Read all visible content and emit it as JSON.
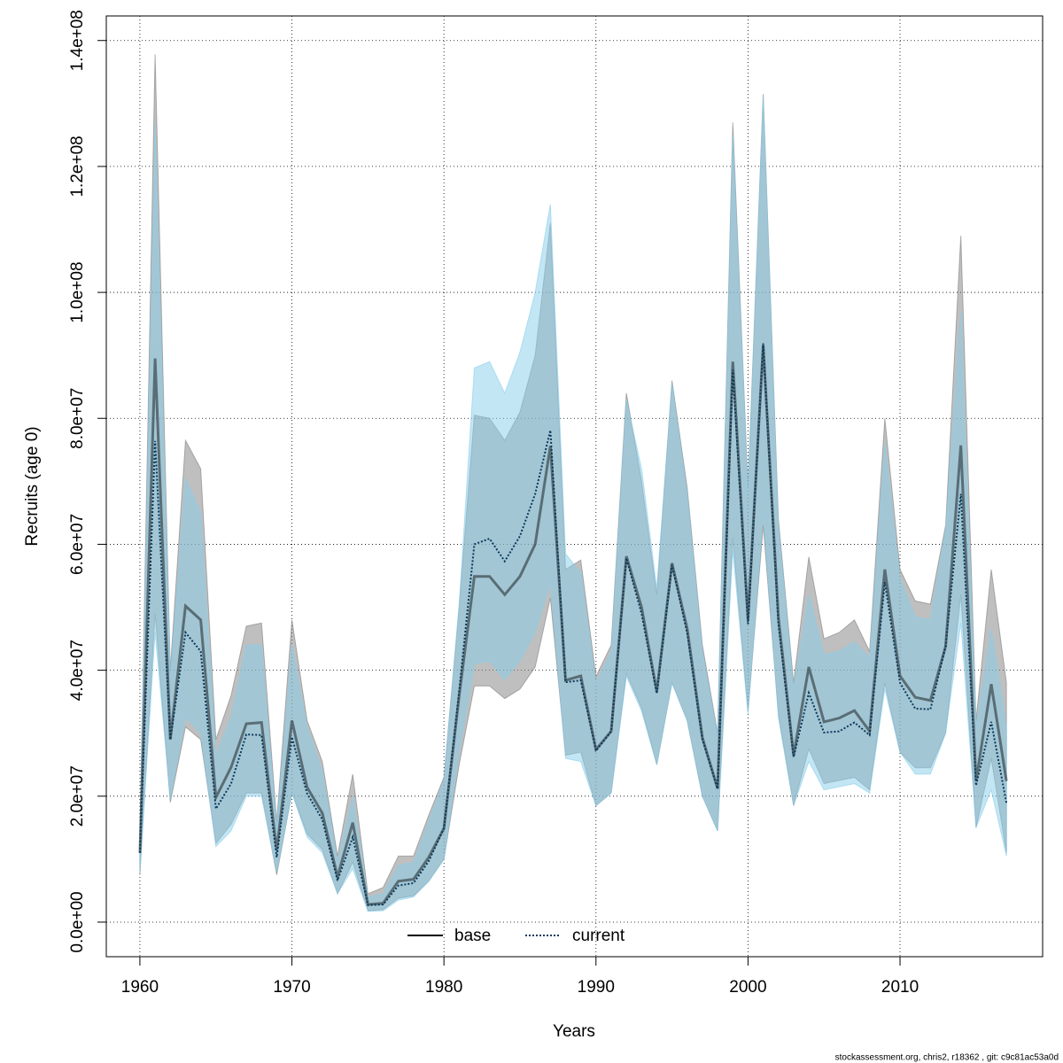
{
  "chart_data": {
    "type": "band-line",
    "xlabel": "Years",
    "ylabel": "Recruits (age 0)",
    "footnote": "stockassessment.org, chris2, r18362 , git: c9c81ac53a0d",
    "x": [
      1960,
      1961,
      1962,
      1963,
      1964,
      1965,
      1966,
      1967,
      1968,
      1969,
      1970,
      1971,
      1972,
      1973,
      1974,
      1975,
      1976,
      1977,
      1978,
      1979,
      1980,
      1981,
      1982,
      1983,
      1984,
      1985,
      1986,
      1987,
      1988,
      1989,
      1990,
      1991,
      1992,
      1993,
      1994,
      1995,
      1996,
      1997,
      1998,
      1999,
      2000,
      2001,
      2002,
      2003,
      2004,
      2005,
      2006,
      2007,
      2008,
      2009,
      2010,
      2011,
      2012,
      2013,
      2014,
      2015,
      2016,
      2017
    ],
    "xlim": [
      1957.79,
      2019.38
    ],
    "xticks": [
      1960,
      1970,
      1980,
      1990,
      2000,
      2010
    ],
    "ylim": [
      -5490000,
      143900000
    ],
    "yticks": [
      {
        "value": 0,
        "label": "0.0e+00"
      },
      {
        "value": 20000000,
        "label": "2.0e+07"
      },
      {
        "value": 40000000,
        "label": "4.0e+07"
      },
      {
        "value": 60000000,
        "label": "6.0e+07"
      },
      {
        "value": 80000000,
        "label": "8.0e+07"
      },
      {
        "value": 100000000,
        "label": "1.0e+08"
      },
      {
        "value": 120000000,
        "label": "1.2e+08"
      },
      {
        "value": 140000000,
        "label": "1.4e+08"
      }
    ],
    "grid": true,
    "legend": "bottom",
    "series": [
      {
        "name": "base",
        "color": "#000000",
        "linestyle": "solid",
        "band_color": "#808080",
        "values": [
          11000000.0,
          89500000.0,
          29000000.0,
          50200000.0,
          48000000.0,
          19800000.0,
          24600000.0,
          31500000.0,
          31700000.0,
          11400000.0,
          32000000.0,
          21400000.0,
          17300000.0,
          7200000.0,
          15800000.0,
          2800000.0,
          3000000.0,
          6500000.0,
          6800000.0,
          10300000.0,
          14900000.0,
          35900000.0,
          54900000.0,
          54900000.0,
          52000000.0,
          54900000.0,
          60000000.0,
          75600000.0,
          38400000.0,
          39100000.0,
          27400000.0,
          30300000.0,
          58100000.0,
          50000000.0,
          36600000.0,
          57000000.0,
          46600000.0,
          29300000.0,
          21200000.0,
          89000000.0,
          48000000.0,
          91600000.0,
          48400000.0,
          26500000.0,
          40500000.0,
          31800000.0,
          32400000.0,
          33600000.0,
          30300000.0,
          56000000.0,
          39100000.0,
          35700000.0,
          35200000.0,
          43800000.0,
          75700000.0,
          22400000.0,
          37800000.0,
          22400000.0
        ],
        "upper": [
          14000000.0,
          137800000.0,
          40000000.0,
          76500000.0,
          72000000.0,
          29000000.0,
          36000000.0,
          47000000.0,
          47500000.0,
          16000000.0,
          48000000.0,
          32000000.0,
          25500000.0,
          10500000.0,
          23500000.0,
          4500000.0,
          5500000.0,
          10500000.0,
          10500000.0,
          17000000.0,
          23000000.0,
          50000000.0,
          80500000.0,
          80000000.0,
          76500000.0,
          81000000.0,
          90000000.0,
          111000000.0,
          56000000.0,
          57500000.0,
          39000000.0,
          44000000.0,
          84000000.0,
          70000000.0,
          52000000.0,
          86000000.0,
          69000000.0,
          44000000.0,
          30000000.0,
          127000000.0,
          69000000.0,
          131500000.0,
          64000000.0,
          38000000.0,
          58000000.0,
          45000000.0,
          46000000.0,
          48000000.0,
          43000000.0,
          80000000.0,
          56000000.0,
          51000000.0,
          50500000.0,
          63000000.0,
          109000000.0,
          32000000.0,
          56000000.0,
          38000000.0
        ],
        "lower": [
          7500000.0,
          49000000.0,
          19000000.0,
          31000000.0,
          29000000.0,
          12500000.0,
          15500000.0,
          20500000.0,
          20500000.0,
          7500000.0,
          20500000.0,
          14000000.0,
          11500000.0,
          4500000.0,
          9500000.0,
          1800000.0,
          2000000.0,
          3800000.0,
          4200000.0,
          6500000.0,
          10000000.0,
          25000000.0,
          37500000.0,
          37500000.0,
          35500000.0,
          37000000.0,
          40500000.0,
          51500000.0,
          26500000.0,
          27000000.0,
          18500000.0,
          20500000.0,
          39500000.0,
          34000000.0,
          25000000.0,
          38000000.0,
          32000000.0,
          20000000.0,
          14500000.0,
          61000000.0,
          33500000.0,
          63000000.0,
          33000000.0,
          18500000.0,
          27500000.0,
          22000000.0,
          22500000.0,
          23000000.0,
          21000000.0,
          38000000.0,
          27000000.0,
          24500000.0,
          24500000.0,
          30000000.0,
          52000000.0,
          15000000.0,
          26000000.0,
          11000000.0
        ]
      },
      {
        "name": "current",
        "color": "#0a3a5a",
        "linestyle": "dotted",
        "band_color": "#87ceeb",
        "values": [
          11000000.0,
          76400000.0,
          29000000.0,
          46000000.0,
          43000000.0,
          18000000.0,
          22000000.0,
          29800000.0,
          29700000.0,
          10300000.0,
          29400000.0,
          20400000.0,
          16300000.0,
          6600000.0,
          13500000.0,
          2700000.0,
          2800000.0,
          5800000.0,
          6200000.0,
          9700000.0,
          14900000.0,
          36700000.0,
          60000000.0,
          60900000.0,
          57300000.0,
          61300000.0,
          68000000.0,
          78100000.0,
          38100000.0,
          38400000.0,
          27200000.0,
          30300000.0,
          57800000.0,
          49000000.0,
          36300000.0,
          56700000.0,
          45900000.0,
          29000000.0,
          21200000.0,
          87700000.0,
          47300000.0,
          91900000.0,
          47300000.0,
          26200000.0,
          36400000.0,
          30100000.0,
          30300000.0,
          31700000.0,
          29700000.0,
          54000000.0,
          38000000.0,
          33900000.0,
          33800000.0,
          43800000.0,
          68000000.0,
          21700000.0,
          31800000.0,
          18900000.0
        ],
        "upper": [
          13000000.0,
          127000000.0,
          39000000.0,
          70500000.0,
          65000000.0,
          26500000.0,
          32500000.0,
          44000000.0,
          44000000.0,
          15000000.0,
          44000000.0,
          31000000.0,
          24000000.0,
          9500000.0,
          20000000.0,
          4000000.0,
          4500000.0,
          9000000.0,
          9500000.0,
          16000000.0,
          22500000.0,
          50500000.0,
          88000000.0,
          89000000.0,
          84000000.0,
          90500000.0,
          100000000.0,
          114000000.0,
          58500000.0,
          55500000.0,
          38000000.0,
          43000000.0,
          83000000.0,
          72000000.0,
          53000000.0,
          85500000.0,
          68000000.0,
          43000000.0,
          29500000.0,
          125000000.0,
          68000000.0,
          131000000.0,
          63000000.0,
          37000000.0,
          52000000.0,
          42500000.0,
          43000000.0,
          44500000.0,
          42000000.0,
          76000000.0,
          54500000.0,
          48500000.0,
          48000000.0,
          62500000.0,
          97000000.0,
          31000000.0,
          46500000.0,
          31000000.0
        ],
        "lower": [
          8000000.0,
          46000000.0,
          19500000.0,
          32500000.0,
          30000000.0,
          12000000.0,
          14500000.0,
          20000000.0,
          20000000.0,
          8000000.0,
          20500000.0,
          13500000.0,
          11000000.0,
          4500000.0,
          8500000.0,
          1700000.0,
          1800000.0,
          3500000.0,
          4000000.0,
          6500000.0,
          10000000.0,
          27000000.0,
          41000000.0,
          41500000.0,
          38500000.0,
          41500000.0,
          46000000.0,
          54000000.0,
          26000000.0,
          25500000.0,
          18500000.0,
          20500000.0,
          39000000.0,
          33500000.0,
          25000000.0,
          38000000.0,
          32000000.0,
          20000000.0,
          14500000.0,
          59000000.0,
          33000000.0,
          65000000.0,
          32500000.0,
          18500000.0,
          25500000.0,
          21000000.0,
          21500000.0,
          22000000.0,
          20500000.0,
          37000000.0,
          27000000.0,
          23500000.0,
          23500000.0,
          30000000.0,
          47500000.0,
          15000000.0,
          21000000.0,
          10500000.0
        ]
      }
    ]
  }
}
